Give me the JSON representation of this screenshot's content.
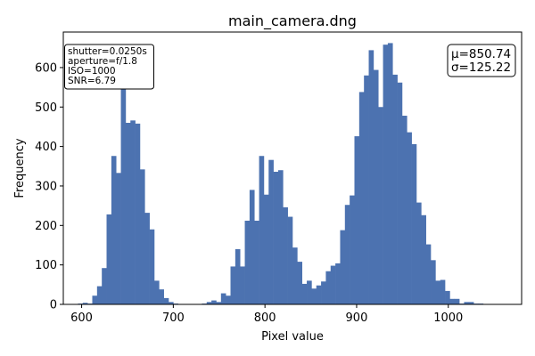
{
  "chart_data": {
    "type": "bar",
    "title": "main_camera.dng",
    "xlabel": "Pixel value",
    "ylabel": "Frequency",
    "xlim": [
      580,
      1080
    ],
    "ylim": [
      0,
      690
    ],
    "xticks": [
      600,
      700,
      800,
      900,
      1000
    ],
    "yticks": [
      0,
      100,
      200,
      300,
      400,
      500,
      600
    ],
    "bar_color": "#4c72b0",
    "bin_start": 596,
    "bin_width": 5.2,
    "values": [
      2,
      4,
      2,
      22,
      46,
      92,
      228,
      376,
      333,
      572,
      460,
      466,
      458,
      342,
      232,
      190,
      60,
      38,
      16,
      6,
      2,
      0,
      0,
      0,
      0,
      0,
      2,
      6,
      10,
      6,
      28,
      22,
      96,
      140,
      96,
      212,
      290,
      212,
      376,
      278,
      366,
      336,
      340,
      246,
      222,
      144,
      108,
      52,
      60,
      40,
      48,
      58,
      84,
      98,
      104,
      188,
      252,
      276,
      426,
      538,
      580,
      644,
      594,
      500,
      658,
      662,
      582,
      562,
      478,
      436,
      406,
      258,
      226,
      152,
      112,
      60,
      62,
      34,
      14,
      14,
      2,
      6,
      6,
      2,
      2
    ],
    "annotations": {
      "params": [
        "shutter=0.0250s",
        "aperture=f/1.8",
        "ISO=1000",
        "SNR=6.79"
      ],
      "stats": [
        "μ=850.74",
        "σ=125.22"
      ]
    }
  }
}
